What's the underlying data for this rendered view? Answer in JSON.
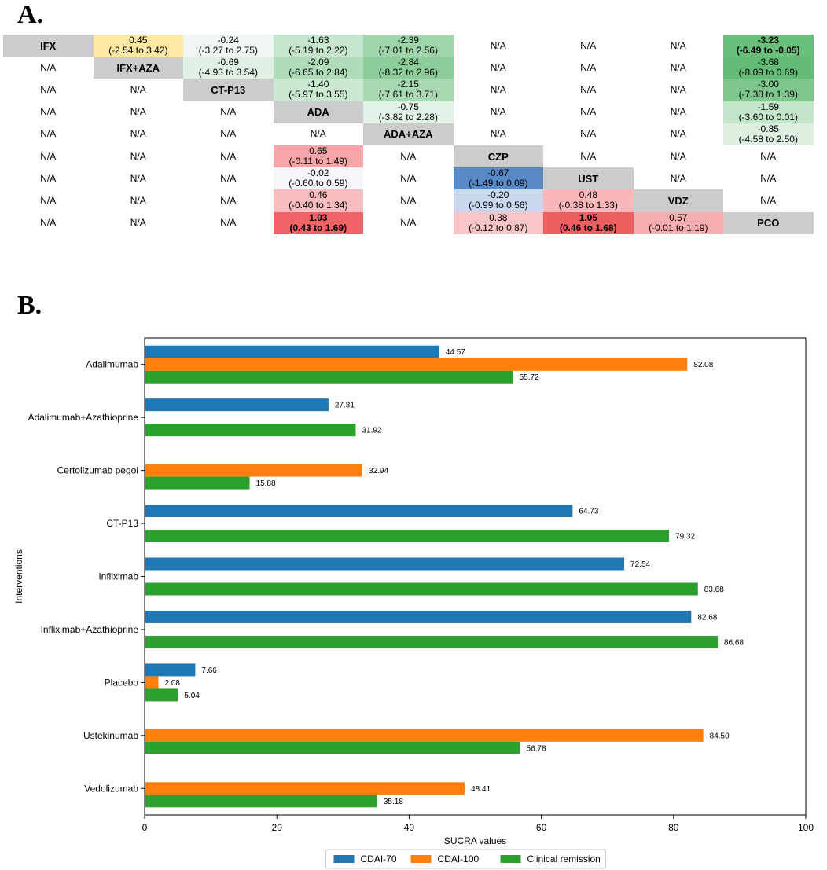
{
  "panel_a": {
    "label": "A.",
    "rows": [
      [
        {
          "t1": "IFX",
          "d": 1
        },
        {
          "t1": "0.45",
          "t2": "(-2.54 to 3.42)",
          "c": "#fde9a4"
        },
        {
          "t1": "-0.24",
          "t2": "(-3.27 to 2.75)",
          "c": "#f0f7f2"
        },
        {
          "t1": "-1.63",
          "t2": "(-5.19 to 2.22)",
          "c": "#c6e6cd"
        },
        {
          "t1": "-2.39",
          "t2": "(-7.01 to 2.56)",
          "c": "#9fd5ab"
        },
        {
          "t1": "N/A"
        },
        {
          "t1": "N/A"
        },
        {
          "t1": "N/A"
        },
        {
          "t1": "-3.23",
          "t2": "(-6.49 to -0.05)",
          "c": "#6abf7b",
          "b": 1
        }
      ],
      [
        {
          "t1": "N/A"
        },
        {
          "t1": "IFX+AZA",
          "d": 1
        },
        {
          "t1": "-0.69",
          "t2": "(-4.93 to 3.54)",
          "c": "#e0f0e4"
        },
        {
          "t1": "-2.09",
          "t2": "(-6.65 to 2.84)",
          "c": "#b0dcba"
        },
        {
          "t1": "-2.84",
          "t2": "(-8.32 to 2.96)",
          "c": "#8ccd99"
        },
        {
          "t1": "N/A"
        },
        {
          "t1": "N/A"
        },
        {
          "t1": "N/A"
        },
        {
          "t1": "-3.68",
          "t2": "(-8.09 to 0.69)",
          "c": "#63bc75"
        }
      ],
      [
        {
          "t1": "N/A"
        },
        {
          "t1": "N/A"
        },
        {
          "t1": "CT-P13",
          "d": 1
        },
        {
          "t1": "-1.40",
          "t2": "(-5.97 to 3.55)",
          "c": "#cbe8d1"
        },
        {
          "t1": "-2.15",
          "t2": "(-7.61 to 3.71)",
          "c": "#a9d9b3"
        },
        {
          "t1": "N/A"
        },
        {
          "t1": "N/A"
        },
        {
          "t1": "N/A"
        },
        {
          "t1": "-3.00",
          "t2": "(-7.38 to 1.39)",
          "c": "#7fc68e"
        }
      ],
      [
        {
          "t1": "N/A"
        },
        {
          "t1": "N/A"
        },
        {
          "t1": "N/A"
        },
        {
          "t1": "ADA",
          "d": 1
        },
        {
          "t1": "-0.75",
          "t2": "(-3.82 to 2.28)",
          "c": "#e2f2e6"
        },
        {
          "t1": "N/A"
        },
        {
          "t1": "N/A"
        },
        {
          "t1": "N/A"
        },
        {
          "t1": "-1.59",
          "t2": "(-3.60 to 0.01)",
          "c": "#c3e5ca"
        }
      ],
      [
        {
          "t1": "N/A"
        },
        {
          "t1": "N/A"
        },
        {
          "t1": "N/A"
        },
        {
          "t1": "N/A"
        },
        {
          "t1": "ADA+AZA",
          "d": 1
        },
        {
          "t1": "N/A"
        },
        {
          "t1": "N/A"
        },
        {
          "t1": "N/A"
        },
        {
          "t1": "-0.85",
          "t2": "(-4.58 to 2.50)",
          "c": "#deefe2"
        }
      ],
      [
        {
          "t1": "N/A"
        },
        {
          "t1": "N/A"
        },
        {
          "t1": "N/A"
        },
        {
          "t1": "0.65",
          "t2": "(-0.11 to 1.49)",
          "c": "#f6a6a8"
        },
        {
          "t1": "N/A"
        },
        {
          "t1": "CZP",
          "d": 1
        },
        {
          "t1": "N/A"
        },
        {
          "t1": "N/A"
        },
        {
          "t1": "N/A"
        }
      ],
      [
        {
          "t1": "N/A"
        },
        {
          "t1": "N/A"
        },
        {
          "t1": "N/A"
        },
        {
          "t1": "-0.02",
          "t2": "(-0.60 to 0.59)",
          "c": "#f6f6fa"
        },
        {
          "t1": "N/A"
        },
        {
          "t1": "-0.67",
          "t2": "(-1.49 to 0.09)",
          "c": "#5a8ac6"
        },
        {
          "t1": "UST",
          "d": 1
        },
        {
          "t1": "N/A"
        },
        {
          "t1": "N/A"
        }
      ],
      [
        {
          "t1": "N/A"
        },
        {
          "t1": "N/A"
        },
        {
          "t1": "N/A"
        },
        {
          "t1": "0.46",
          "t2": "(-0.40 to 1.34)",
          "c": "#f8bdbf"
        },
        {
          "t1": "N/A"
        },
        {
          "t1": "-0.20",
          "t2": "(-0.99 to 0.56)",
          "c": "#c9d8ef"
        },
        {
          "t1": "0.48",
          "t2": "(-0.38 to 1.33)",
          "c": "#f8b8ba"
        },
        {
          "t1": "VDZ",
          "d": 1
        },
        {
          "t1": "N/A"
        }
      ],
      [
        {
          "t1": "N/A"
        },
        {
          "t1": "N/A"
        },
        {
          "t1": "N/A"
        },
        {
          "t1": "1.03",
          "t2": "(0.43 to 1.69)",
          "c": "#f06366",
          "b": 1
        },
        {
          "t1": "N/A"
        },
        {
          "t1": "0.38",
          "t2": "(-0.12 to 0.87)",
          "c": "#f9c6c8"
        },
        {
          "t1": "1.05",
          "t2": "(0.46 to 1.68)",
          "c": "#ef5f62",
          "b": 1
        },
        {
          "t1": "0.57",
          "t2": "(-0.01 to 1.19)",
          "c": "#f7aeb0"
        },
        {
          "t1": "PCO",
          "d": 1
        }
      ]
    ]
  },
  "panel_b": {
    "label": "B."
  },
  "chart_data": {
    "type": "bar",
    "orientation": "horizontal",
    "xlabel": "SUCRA values",
    "ylabel": "Interventions",
    "xlim": [
      0,
      100
    ],
    "xticks": [
      "0",
      "20",
      "40",
      "60",
      "80",
      "100"
    ],
    "grid": false,
    "legend_position": "bottom-center",
    "categories": [
      "Adalimumab",
      "Adalimumab+Azathioprine",
      "Certolizumab pegol",
      "CT-P13",
      "Infliximab",
      "Infliximab+Azathioprine",
      "Placebo",
      "Ustekinumab",
      "Vedolizumab"
    ],
    "series": [
      {
        "name": "CDAI-70",
        "color": "#1f77b4",
        "values": [
          44.57,
          27.81,
          null,
          64.73,
          72.54,
          82.68,
          7.66,
          null,
          null
        ],
        "labels": [
          "44.57",
          "27.81",
          null,
          "64.73",
          "72.54",
          "82.68",
          "7.66",
          null,
          null
        ]
      },
      {
        "name": "CDAI-100",
        "color": "#ff7f0e",
        "values": [
          82.08,
          null,
          32.94,
          null,
          null,
          null,
          2.08,
          84.5,
          48.41
        ],
        "labels": [
          "82.08",
          null,
          "32.94",
          null,
          null,
          null,
          "2.08",
          "84.50",
          "48.41"
        ]
      },
      {
        "name": "Clinical remission",
        "color": "#2ca02c",
        "values": [
          55.72,
          31.92,
          15.88,
          79.32,
          83.68,
          86.68,
          5.04,
          56.78,
          35.18
        ],
        "labels": [
          "55.72",
          "31.92",
          "15.88",
          "79.32",
          "83.68",
          "86.68",
          "5.04",
          "56.78",
          "35.18"
        ]
      }
    ]
  }
}
